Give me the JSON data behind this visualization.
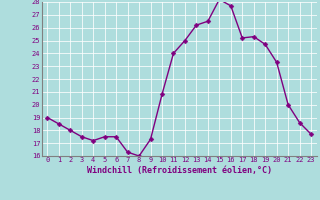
{
  "x": [
    0,
    1,
    2,
    3,
    4,
    5,
    6,
    7,
    8,
    9,
    10,
    11,
    12,
    13,
    14,
    15,
    16,
    17,
    18,
    19,
    20,
    21,
    22,
    23
  ],
  "y": [
    19,
    18.5,
    18,
    17.5,
    17.2,
    17.5,
    17.5,
    16.3,
    16.0,
    17.3,
    20.8,
    24.0,
    25.0,
    26.2,
    26.5,
    28.2,
    27.7,
    25.2,
    25.3,
    24.7,
    23.3,
    20.0,
    18.6,
    17.7
  ],
  "line_color": "#800080",
  "marker_color": "#800080",
  "bg_color": "#aedddd",
  "grid_color": "#c8e8e8",
  "xlabel": "Windchill (Refroidissement éolien,°C)",
  "xlabel_color": "#800080",
  "tick_color": "#800080",
  "spine_color": "#808080",
  "ylim": [
    16,
    28
  ],
  "yticks": [
    16,
    17,
    18,
    19,
    20,
    21,
    22,
    23,
    24,
    25,
    26,
    27,
    28
  ],
  "xticks": [
    0,
    1,
    2,
    3,
    4,
    5,
    6,
    7,
    8,
    9,
    10,
    11,
    12,
    13,
    14,
    15,
    16,
    17,
    18,
    19,
    20,
    21,
    22,
    23
  ],
  "marker_size": 2.5,
  "line_width": 1.0,
  "xlabel_fontsize": 6.0,
  "tick_fontsize": 5.0
}
